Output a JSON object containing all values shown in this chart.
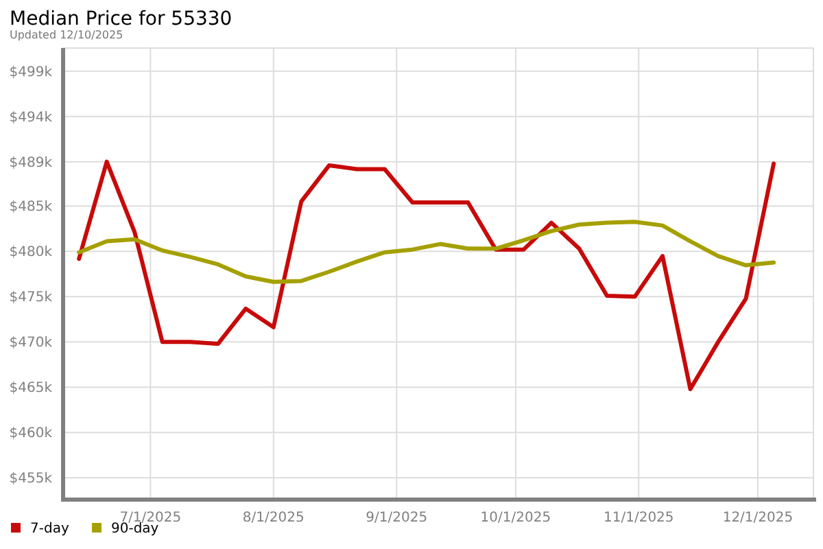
{
  "chart_data": {
    "type": "line",
    "title": "Median Price for 55330",
    "subtitle": "Updated 12/10/2025",
    "x": [
      "2025-06-13",
      "2025-06-20",
      "2025-06-27",
      "2025-07-04",
      "2025-07-11",
      "2025-07-18",
      "2025-07-25",
      "2025-08-01",
      "2025-08-08",
      "2025-08-15",
      "2025-08-22",
      "2025-08-29",
      "2025-09-05",
      "2025-09-12",
      "2025-09-19",
      "2025-09-26",
      "2025-10-03",
      "2025-10-10",
      "2025-10-17",
      "2025-10-24",
      "2025-10-31",
      "2025-11-07",
      "2025-11-14",
      "2025-11-21",
      "2025-11-28",
      "2025-12-05"
    ],
    "series": [
      {
        "name": "7-day",
        "color": "#c80a0a",
        "values": [
          478.9,
          489.4,
          481.8,
          469.9,
          469.9,
          469.7,
          473.5,
          471.5,
          485.1,
          489.0,
          488.6,
          488.6,
          485.0,
          485.0,
          485.0,
          479.9,
          479.9,
          482.8,
          480.0,
          474.9,
          474.8,
          479.2,
          464.8,
          469.9,
          474.6,
          489.2
        ]
      },
      {
        "name": "90-day",
        "color": "#a5a000",
        "values": [
          479.6,
          480.8,
          481.0,
          479.8,
          479.1,
          478.3,
          477.0,
          476.4,
          476.5,
          477.5,
          478.6,
          479.6,
          479.9,
          480.5,
          480.0,
          480.0,
          480.9,
          481.9,
          482.6,
          482.8,
          482.9,
          482.5,
          480.8,
          479.2,
          478.2,
          478.5
        ]
      }
    ],
    "xlim": [
      "2025-06-09",
      "2025-12-15"
    ],
    "xticks": [
      {
        "value": "2025-07-01",
        "label": "7/1/2025"
      },
      {
        "value": "2025-08-01",
        "label": "8/1/2025"
      },
      {
        "value": "2025-09-01",
        "label": "9/1/2025"
      },
      {
        "value": "2025-10-01",
        "label": "10/1/2025"
      },
      {
        "value": "2025-11-01",
        "label": "11/1/2025"
      },
      {
        "value": "2025-12-01",
        "label": "12/1/2025"
      }
    ],
    "ylim": [
      453.0,
      501.7
    ],
    "yticks": [
      {
        "value": 455.2,
        "label": "$455k"
      },
      {
        "value": 460.1,
        "label": "$460k"
      },
      {
        "value": 465.0,
        "label": "$465k"
      },
      {
        "value": 469.9,
        "label": "$470k"
      },
      {
        "value": 474.8,
        "label": "$475k"
      },
      {
        "value": 479.7,
        "label": "$480k"
      },
      {
        "value": 484.6,
        "label": "$485k"
      },
      {
        "value": 489.4,
        "label": "$489k"
      },
      {
        "value": 494.3,
        "label": "$494k"
      },
      {
        "value": 499.2,
        "label": "$499k"
      }
    ],
    "grid": true,
    "legend": "bottom left"
  }
}
